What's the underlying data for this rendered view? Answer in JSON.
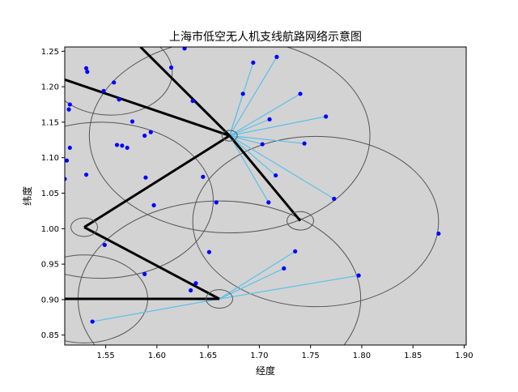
{
  "chart_data": {
    "type": "scatter",
    "title": "上海市低空无人机支线航路网络示意图",
    "xlabel": "经度",
    "ylabel": "纬度",
    "xlim": [
      1.51,
      1.902
    ],
    "ylim": [
      0.836,
      1.256
    ],
    "x_ticks": [
      1.55,
      1.6,
      1.65,
      1.7,
      1.75,
      1.8,
      1.85,
      1.9
    ],
    "x_tick_labels": [
      "1.55",
      "1.60",
      "1.65",
      "1.70",
      "1.75",
      "1.80",
      "1.85",
      "1.90"
    ],
    "y_ticks": [
      0.85,
      0.9,
      0.95,
      1.0,
      1.05,
      1.1,
      1.15,
      1.2,
      1.25
    ],
    "y_tick_labels": [
      "0.85",
      "0.90",
      "0.95",
      "1.00",
      "1.05",
      "1.10",
      "1.15",
      "1.20",
      "1.25"
    ],
    "grid": false,
    "legend": "none",
    "colors": {
      "background": "#d3d3d3",
      "points": "#0000ff",
      "branch_lines": "#5bc0eb",
      "trunk_lines": "#000000",
      "coverage_circles": "#555555",
      "hub_circles": "#555555"
    },
    "demand_points": [
      [
        1.531,
        1.226
      ],
      [
        1.532,
        1.221
      ],
      [
        1.558,
        1.206
      ],
      [
        1.563,
        1.182
      ],
      [
        1.548,
        1.194
      ],
      [
        1.514,
        1.168
      ],
      [
        1.515,
        1.175
      ],
      [
        1.512,
        1.096
      ],
      [
        1.515,
        1.114
      ],
      [
        1.51,
        1.07
      ],
      [
        1.531,
        1.076
      ],
      [
        1.576,
        1.151
      ],
      [
        1.588,
        1.131
      ],
      [
        1.594,
        1.136
      ],
      [
        1.561,
        1.118
      ],
      [
        1.566,
        1.117
      ],
      [
        1.571,
        1.114
      ],
      [
        1.589,
        1.072
      ],
      [
        1.597,
        1.033
      ],
      [
        1.614,
        1.227
      ],
      [
        1.627,
        1.254
      ],
      [
        1.635,
        1.18
      ],
      [
        1.694,
        1.234
      ],
      [
        1.717,
        1.242
      ],
      [
        1.684,
        1.19
      ],
      [
        1.74,
        1.19
      ],
      [
        1.71,
        1.154
      ],
      [
        1.703,
        1.119
      ],
      [
        1.744,
        1.12
      ],
      [
        1.765,
        1.158
      ],
      [
        1.716,
        1.075
      ],
      [
        1.709,
        1.037
      ],
      [
        1.773,
        1.042
      ],
      [
        1.645,
        1.073
      ],
      [
        1.658,
        1.037
      ],
      [
        1.651,
        0.967
      ],
      [
        1.549,
        0.977
      ],
      [
        1.588,
        0.936
      ],
      [
        1.638,
        0.923
      ],
      [
        1.633,
        0.913
      ],
      [
        1.724,
        0.944
      ],
      [
        1.735,
        0.968
      ],
      [
        1.797,
        0.934
      ],
      [
        1.875,
        0.993
      ],
      [
        1.537,
        0.869
      ]
    ],
    "hubs": [
      {
        "x": 1.671,
        "y": 1.131,
        "r": 0.0075
      },
      {
        "x": 1.529,
        "y": 1.002,
        "r": 0.013
      },
      {
        "x": 1.661,
        "y": 0.901,
        "r": 0.013
      },
      {
        "x": 1.74,
        "y": 1.011,
        "r": 0.013
      }
    ],
    "trunk_routes": [
      [
        [
          1.51,
          1.21
        ],
        [
          1.671,
          1.131
        ]
      ],
      [
        [
          1.584,
          1.256
        ],
        [
          1.671,
          1.131
        ]
      ],
      [
        [
          1.671,
          1.131
        ],
        [
          1.74,
          1.011
        ]
      ],
      [
        [
          1.671,
          1.131
        ],
        [
          1.529,
          1.002
        ]
      ],
      [
        [
          1.529,
          1.002
        ],
        [
          1.661,
          0.901
        ]
      ],
      [
        [
          1.51,
          0.901
        ],
        [
          1.661,
          0.901
        ]
      ]
    ],
    "branch_routes": [
      {
        "from": [
          1.671,
          1.131
        ],
        "to": [
          [
            1.635,
            1.18
          ],
          [
            1.684,
            1.19
          ],
          [
            1.694,
            1.234
          ],
          [
            1.717,
            1.242
          ],
          [
            1.74,
            1.19
          ],
          [
            1.71,
            1.154
          ],
          [
            1.703,
            1.119
          ],
          [
            1.744,
            1.12
          ],
          [
            1.765,
            1.158
          ],
          [
            1.716,
            1.075
          ],
          [
            1.709,
            1.037
          ],
          [
            1.773,
            1.042
          ]
        ]
      },
      {
        "from": [
          1.661,
          0.901
        ],
        "to": [
          [
            1.724,
            0.944
          ],
          [
            1.735,
            0.968
          ],
          [
            1.797,
            0.934
          ],
          [
            1.537,
            0.869
          ]
        ]
      }
    ],
    "coverage_circles": [
      {
        "cx": 1.555,
        "cy": 1.22,
        "r": 0.06
      },
      {
        "cx": 1.671,
        "cy": 1.131,
        "r": 0.137
      },
      {
        "cx": 1.545,
        "cy": 1.04,
        "r": 0.11
      },
      {
        "cx": 1.755,
        "cy": 1.01,
        "r": 0.12
      },
      {
        "cx": 1.661,
        "cy": 0.901,
        "r": 0.138
      },
      {
        "cx": 1.529,
        "cy": 0.901,
        "r": 0.062
      }
    ]
  }
}
